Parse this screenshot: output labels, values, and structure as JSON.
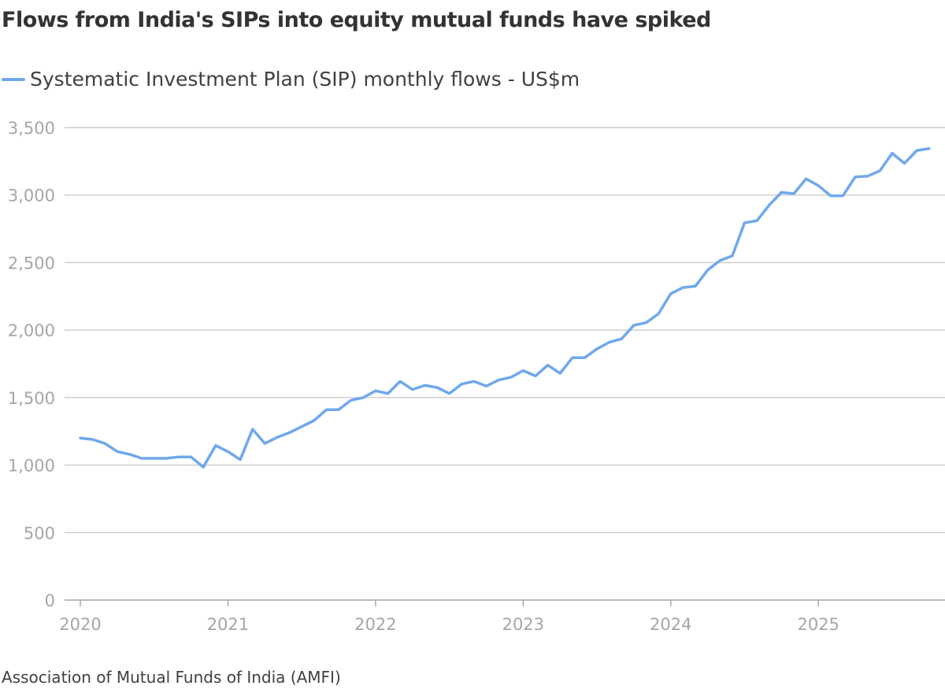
{
  "title": "Flows from India's SIPs into equity mutual funds have spiked",
  "source": "Association of Mutual Funds of India (AMFI)",
  "chart_data": {
    "type": "line",
    "title": "Flows from India's SIPs into equity mutual funds have spiked",
    "legend_position": "top-left",
    "grid": true,
    "ylim": [
      0,
      3500
    ],
    "y_ticks": [
      "0",
      "500",
      "1,000",
      "1,500",
      "2,000",
      "2,500",
      "3,000",
      "3,500"
    ],
    "y_tick_values": [
      0,
      500,
      1000,
      1500,
      2000,
      2500,
      3000,
      3500
    ],
    "x_ticks": [
      "2020",
      "2021",
      "2022",
      "2023",
      "2024",
      "2025"
    ],
    "x_start": "2020-01",
    "x_end": "2025-10",
    "frequency": "monthly",
    "colors": {
      "series": "#6fa8ec",
      "grid": "#cccccc",
      "axis": "#a6a6a6"
    },
    "series": [
      {
        "name": "Systematic Investment Plan (SIP) monthly flows - US$m",
        "values": [
          1200,
          1190,
          1160,
          1100,
          1080,
          1050,
          1050,
          1050,
          1060,
          1060,
          985,
          1145,
          1100,
          1040,
          1265,
          1160,
          1205,
          1240,
          1285,
          1330,
          1410,
          1410,
          1480,
          1500,
          1550,
          1530,
          1620,
          1560,
          1590,
          1575,
          1530,
          1600,
          1620,
          1585,
          1630,
          1650,
          1700,
          1660,
          1740,
          1680,
          1795,
          1795,
          1860,
          1910,
          1935,
          2035,
          2055,
          2120,
          2270,
          2315,
          2325,
          2445,
          2515,
          2550,
          2795,
          2810,
          2925,
          3020,
          3010,
          3120,
          3070,
          2995,
          2995,
          3135,
          3140,
          3180,
          3310,
          3235,
          3330,
          3345
        ]
      }
    ]
  }
}
